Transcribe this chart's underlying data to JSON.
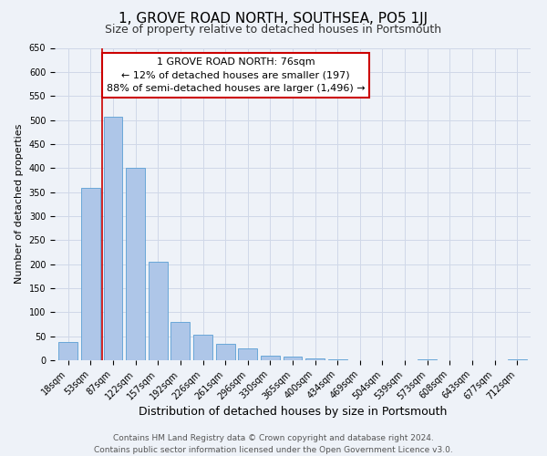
{
  "title": "1, GROVE ROAD NORTH, SOUTHSEA, PO5 1JJ",
  "subtitle": "Size of property relative to detached houses in Portsmouth",
  "bar_labels": [
    "18sqm",
    "53sqm",
    "87sqm",
    "122sqm",
    "157sqm",
    "192sqm",
    "226sqm",
    "261sqm",
    "296sqm",
    "330sqm",
    "365sqm",
    "400sqm",
    "434sqm",
    "469sqm",
    "504sqm",
    "539sqm",
    "573sqm",
    "608sqm",
    "643sqm",
    "677sqm",
    "712sqm"
  ],
  "bar_values": [
    38,
    358,
    507,
    400,
    205,
    80,
    54,
    35,
    24,
    10,
    8,
    4,
    2,
    0,
    0,
    0,
    1,
    0,
    0,
    0,
    1
  ],
  "bar_color": "#aec6e8",
  "bar_edge_color": "#5a9fd4",
  "xlabel": "Distribution of detached houses by size in Portsmouth",
  "ylabel": "Number of detached properties",
  "ylim": [
    0,
    650
  ],
  "yticks": [
    0,
    50,
    100,
    150,
    200,
    250,
    300,
    350,
    400,
    450,
    500,
    550,
    600,
    650
  ],
  "marker_label": "1 GROVE ROAD NORTH: 76sqm",
  "annotation_line1": "← 12% of detached houses are smaller (197)",
  "annotation_line2": "88% of semi-detached houses are larger (1,496) →",
  "annotation_box_color": "#ffffff",
  "annotation_box_edgecolor": "#cc0000",
  "marker_line_color": "#cc0000",
  "grid_color": "#d0d8e8",
  "background_color": "#eef2f8",
  "footer_line1": "Contains HM Land Registry data © Crown copyright and database right 2024.",
  "footer_line2": "Contains public sector information licensed under the Open Government Licence v3.0.",
  "title_fontsize": 11,
  "subtitle_fontsize": 9,
  "xlabel_fontsize": 9,
  "ylabel_fontsize": 8,
  "tick_fontsize": 7,
  "annotation_fontsize": 8,
  "footer_fontsize": 6.5
}
